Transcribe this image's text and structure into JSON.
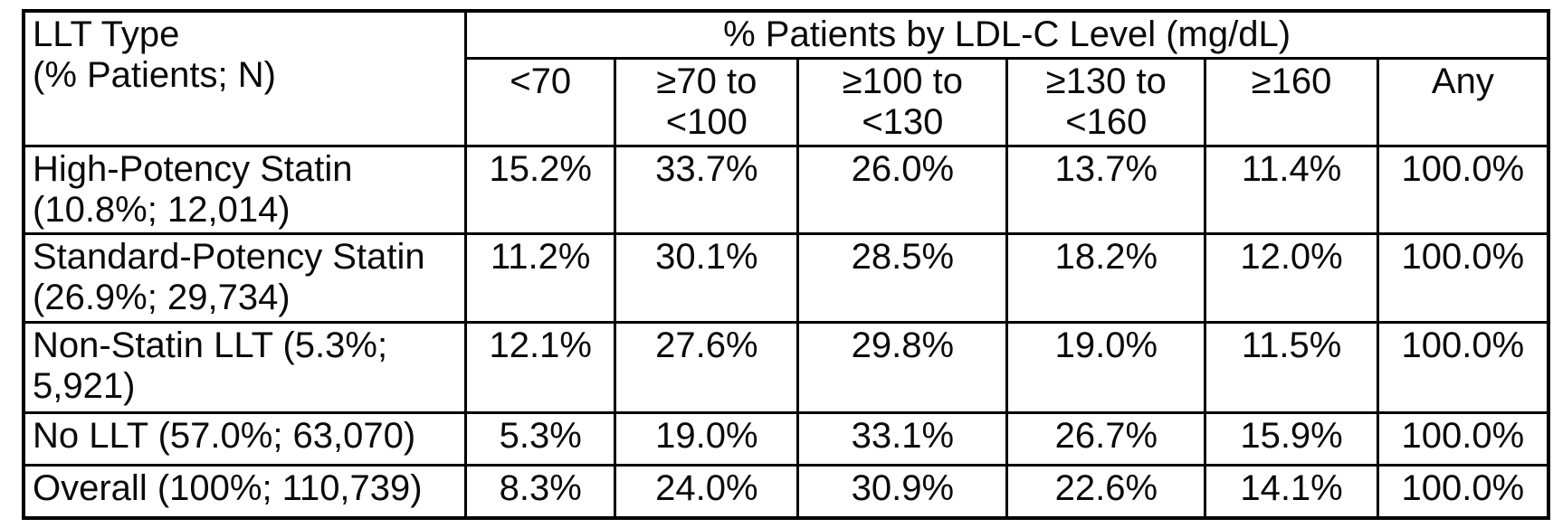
{
  "table": {
    "border_color": "#000000",
    "text_color": "#0a0a0a",
    "corner": {
      "line1": "LLT Type",
      "line2": "(% Patients; N)"
    },
    "group_header": "% Patients by LDL-C Level (mg/dL)",
    "col_headers": [
      {
        "line1": "<70",
        "line2": ""
      },
      {
        "line1": "≥70 to",
        "line2": "<100"
      },
      {
        "line1": "≥100 to",
        "line2": "<130"
      },
      {
        "line1": "≥130 to",
        "line2": "<160"
      },
      {
        "line1": "≥160",
        "line2": ""
      },
      {
        "line1": "Any",
        "line2": ""
      }
    ],
    "rows": [
      {
        "label": "High-Potency Statin (10.8%; 12,014)",
        "values": [
          "15.2%",
          "33.7%",
          "26.0%",
          "13.7%",
          "11.4%",
          "100.0%"
        ]
      },
      {
        "label": "Standard-Potency Statin (26.9%; 29,734)",
        "values": [
          "11.2%",
          "30.1%",
          "28.5%",
          "18.2%",
          "12.0%",
          "100.0%"
        ]
      },
      {
        "label": "Non-Statin LLT (5.3%; 5,921)",
        "values": [
          "12.1%",
          "27.6%",
          "29.8%",
          "19.0%",
          "11.5%",
          "100.0%"
        ]
      },
      {
        "label": "No LLT (57.0%; 63,070)",
        "values": [
          "5.3%",
          "19.0%",
          "33.1%",
          "26.7%",
          "15.9%",
          "100.0%"
        ]
      },
      {
        "label": "Overall (100%; 110,739)",
        "values": [
          "8.3%",
          "24.0%",
          "30.9%",
          "22.6%",
          "14.1%",
          "100.0%"
        ]
      }
    ]
  }
}
